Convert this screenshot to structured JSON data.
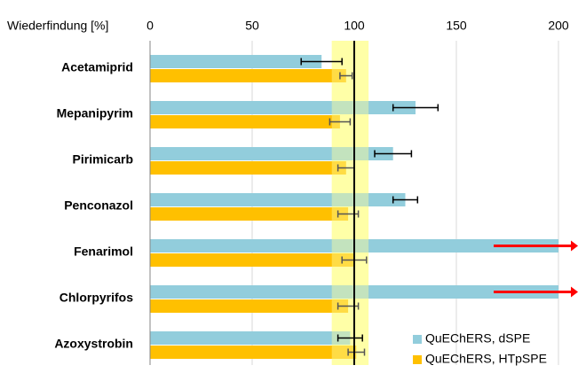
{
  "chart_data": {
    "type": "bar",
    "orientation": "horizontal",
    "x_label": "Wiederfindung [%]",
    "categories": [
      "Acetamiprid",
      "Mepanipyrim",
      "Pirimicarb",
      "Penconazol",
      "Fenarimol",
      "Chlorpyrifos",
      "Azoxystrobin"
    ],
    "series": [
      {
        "name": "QuEChERS, dSPE",
        "color": "#92cddc",
        "values": [
          84,
          130,
          119,
          125,
          200,
          200,
          98
        ],
        "errors": [
          10,
          11,
          9,
          6,
          null,
          null,
          6
        ]
      },
      {
        "name": "QuEChERS, HTpSPE",
        "color": "#ffc000",
        "values": [
          96,
          93,
          96,
          97,
          100,
          97,
          101
        ],
        "errors": [
          3,
          5,
          4,
          5,
          6,
          5,
          4
        ]
      }
    ],
    "xlim": [
      0,
      200
    ],
    "xticks": [
      0,
      50,
      100,
      150,
      200
    ],
    "grid": true,
    "target_band": [
      89,
      107
    ],
    "reference_line": 100,
    "legend": "lower right"
  }
}
